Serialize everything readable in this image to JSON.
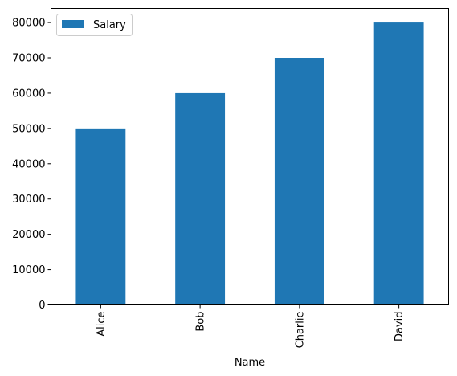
{
  "chart_data": {
    "type": "bar",
    "categories": [
      "Alice",
      "Bob",
      "Charlie",
      "David"
    ],
    "series": [
      {
        "name": "Salary",
        "values": [
          50000,
          60000,
          70000,
          80000
        ]
      }
    ],
    "xlabel": "Name",
    "ylabel": "",
    "ylim": [
      0,
      84000
    ],
    "yticks": [
      0,
      10000,
      20000,
      30000,
      40000,
      50000,
      60000,
      70000,
      80000
    ],
    "grid": false,
    "legend": "top-left",
    "bar_color": "#1f77b4"
  }
}
